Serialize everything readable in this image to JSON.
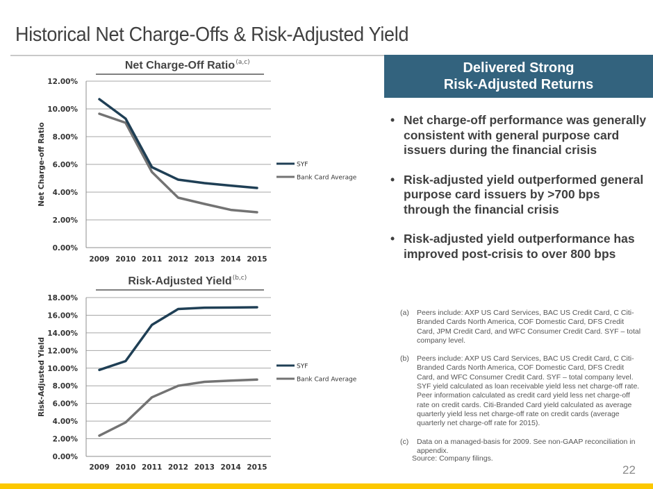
{
  "page": {
    "title": "Historical Net Charge-Offs & Risk-Adjusted Yield",
    "page_number": "22",
    "colors": {
      "accent_blue": "#33637e",
      "footer_yellow": "#fcc800",
      "syf_line": "#1f3f55",
      "bank_line": "#737373"
    }
  },
  "callout": {
    "line1": "Delivered Strong",
    "line2": "Risk-Adjusted Returns"
  },
  "bullets": [
    {
      "marker": "•",
      "text": "Net charge-off performance was generally consistent with general purpose card issuers during the financial crisis"
    },
    {
      "marker": "•",
      "text": "Risk-adjusted yield outperformed general purpose card issuers by >700 bps through the financial crisis"
    },
    {
      "marker": "•",
      "text": "Risk-adjusted yield outperformance has improved post-crisis to over 800 bps"
    }
  ],
  "notes": [
    {
      "tag": "(a)",
      "text": "Peers include:  AXP US Card Services, BAC US Credit Card, C Citi-Branded Cards North America, COF Domestic Card, DFS Credit Card, JPM Credit Card, and WFC Consumer Credit Card.  SYF – total company level."
    },
    {
      "tag": "(b)",
      "text": "Peers include:  AXP US Card Services, BAC US Credit Card, C Citi-Branded Cards North America, COF Domestic Card, DFS Credit Card, and WFC Consumer Credit Card.  SYF – total company level. SYF yield calculated as loan receivable yield less net charge-off rate. Peer information calculated as credit card yield less net charge-off rate on credit cards.  Citi-Branded Card yield calculated as average quarterly yield less net charge-off rate on credit cards (average quarterly net charge-off rate for 2015)."
    },
    {
      "tag": "(c)",
      "text": "Data on a managed-basis for 2009. See non-GAAP reconciliation in appendix."
    }
  ],
  "source": "Source:  Company filings.",
  "chart_data": [
    {
      "type": "line",
      "title": "Net Charge-Off Ratio",
      "title_superscript": "(a,c)",
      "xlabel": "",
      "ylabel": "Net Charge-off Ratio",
      "categories": [
        "2009",
        "2010",
        "2011",
        "2012",
        "2013",
        "2014",
        "2015"
      ],
      "ylim": [
        0,
        12
      ],
      "yticks": [
        0,
        2,
        4,
        6,
        8,
        10,
        12
      ],
      "ytick_labels": [
        "0.00%",
        "2.00%",
        "4.00%",
        "6.00%",
        "8.00%",
        "10.00%",
        "12.00%"
      ],
      "grid": true,
      "legend": "right",
      "series": [
        {
          "name": "SYF",
          "color": "#1f3f55",
          "values": [
            10.7,
            9.3,
            5.8,
            4.9,
            4.65,
            4.47,
            4.3
          ]
        },
        {
          "name": "Bank Card Average",
          "color": "#737373",
          "values": [
            9.65,
            9.0,
            5.45,
            3.6,
            3.15,
            2.72,
            2.55
          ]
        }
      ]
    },
    {
      "type": "line",
      "title": "Risk-Adjusted Yield",
      "title_superscript": "(b,c)",
      "xlabel": "",
      "ylabel": "Risk-Adjusted Yield",
      "categories": [
        "2009",
        "2010",
        "2011",
        "2012",
        "2013",
        "2014",
        "2015"
      ],
      "ylim": [
        0,
        18
      ],
      "yticks": [
        0,
        2,
        4,
        6,
        8,
        10,
        12,
        14,
        16,
        18
      ],
      "ytick_labels": [
        "0.00%",
        "2.00%",
        "4.00%",
        "6.00%",
        "8.00%",
        "10.00%",
        "12.00%",
        "14.00%",
        "16.00%",
        "18.00%"
      ],
      "grid": true,
      "legend": "right",
      "series": [
        {
          "name": "SYF",
          "color": "#1f3f55",
          "values": [
            9.8,
            10.8,
            14.9,
            16.7,
            16.85,
            16.87,
            16.9
          ]
        },
        {
          "name": "Bank Card Average",
          "color": "#737373",
          "values": [
            2.35,
            3.85,
            6.7,
            8.0,
            8.45,
            8.58,
            8.7
          ]
        }
      ]
    }
  ]
}
